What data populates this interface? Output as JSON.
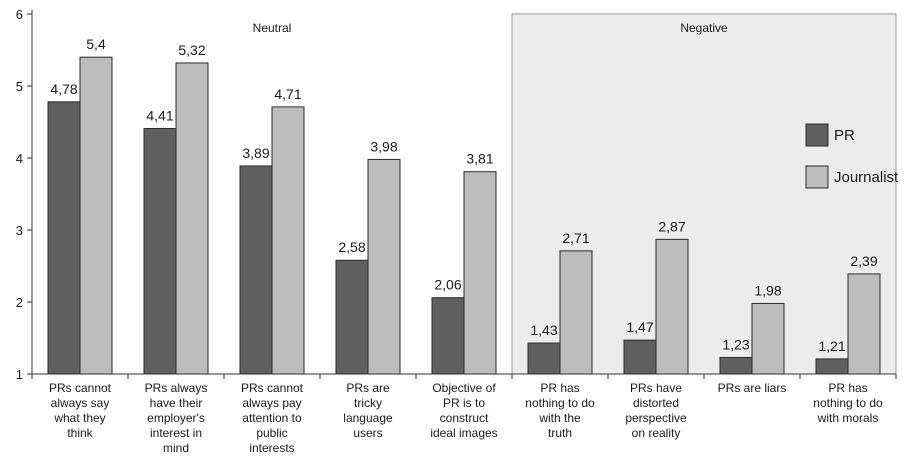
{
  "chart_data": {
    "type": "bar",
    "title": "",
    "xlabel": "",
    "ylabel": "",
    "ylim": [
      1,
      6
    ],
    "yticks": [
      1,
      2,
      3,
      4,
      5,
      6
    ],
    "ytick_labels": [
      "1",
      "2",
      "3",
      "4",
      "5",
      "6"
    ],
    "grid": false,
    "legend_position": "right",
    "categories": [
      [
        "PRs cannot",
        "always say",
        "what they",
        "think"
      ],
      [
        "PRs always",
        "have their",
        "employer's",
        "interest in",
        "mind"
      ],
      [
        "PRs cannot",
        "always pay",
        "attention to",
        "public",
        "interests"
      ],
      [
        "PRs are",
        "tricky",
        "language",
        "users"
      ],
      [
        "Objective of",
        "PR is to",
        "construct",
        "ideal images"
      ],
      [
        "PR has",
        "nothing to do",
        "with the",
        "truth"
      ],
      [
        "PRs have",
        "distorted",
        "perspective",
        "on reality"
      ],
      [
        "PRs are liars"
      ],
      [
        "PR has",
        "nothing to do",
        "with morals"
      ]
    ],
    "series": [
      {
        "name": "PR",
        "color": "#5f5f5f",
        "values": [
          4.78,
          4.41,
          3.89,
          2.58,
          2.06,
          1.43,
          1.47,
          1.23,
          1.21
        ],
        "labels": [
          "4,78",
          "4,41",
          "3,89",
          "2,58",
          "2,06",
          "1,43",
          "1,47",
          "1,23",
          "1,21"
        ]
      },
      {
        "name": "Journalist",
        "color": "#bdbdbd",
        "values": [
          5.4,
          5.32,
          4.71,
          3.98,
          3.81,
          2.71,
          2.87,
          1.98,
          2.39
        ],
        "labels": [
          "5,4",
          "5,32",
          "4,71",
          "3,98",
          "3,81",
          "2,71",
          "2,87",
          "1,98",
          "2,39"
        ]
      }
    ],
    "regions": [
      {
        "label": "Neutral",
        "from_category": 0,
        "to_category": 4,
        "fill": "#ffffff"
      },
      {
        "label": "Negative",
        "from_category": 5,
        "to_category": 8,
        "fill": "#ececec"
      }
    ]
  }
}
